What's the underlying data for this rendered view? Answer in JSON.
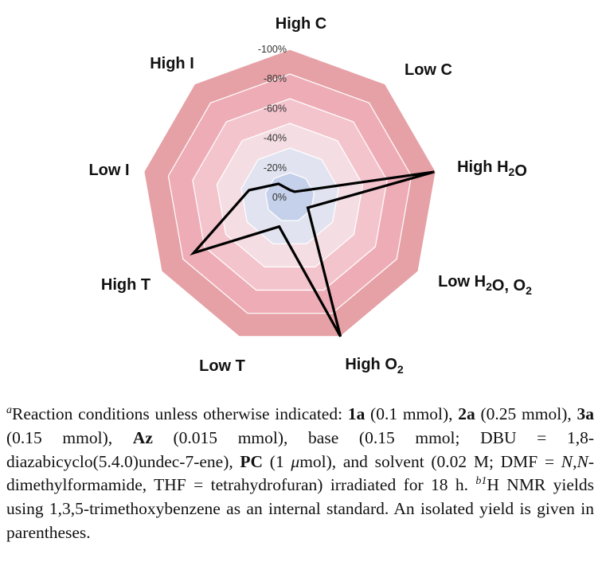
{
  "chart_data": {
    "type": "radar",
    "axes": [
      {
        "label": "High C",
        "sub": ""
      },
      {
        "label": "Low C",
        "sub": ""
      },
      {
        "label": "High H",
        "sub": "2",
        "suffix": "O"
      },
      {
        "label": "Low H",
        "sub": "2",
        "suffix": "O, O",
        "sub2": "2"
      },
      {
        "label": "High O",
        "sub": "2"
      },
      {
        "label": "Low T",
        "sub": ""
      },
      {
        "label": "High T",
        "sub": ""
      },
      {
        "label": "Low I",
        "sub": ""
      },
      {
        "label": "High I",
        "sub": ""
      }
    ],
    "ticks": [
      "0%",
      "-20%",
      "-40%",
      "-60%",
      "-80%",
      "-100%"
    ],
    "rlim": [
      0,
      -100
    ],
    "series": [
      {
        "values": [
          -5,
          -5,
          -99,
          -14,
          -100,
          -21,
          -75,
          -28,
          -12
        ]
      }
    ],
    "ring_colors": [
      "#c5d0ea",
      "#e1e4f0",
      "#f4dde3",
      "#f4c4cd",
      "#eeadb6",
      "#e6a1a6"
    ]
  },
  "footnote": {
    "mark_a": "a",
    "p1": "Reaction conditions unless otherwise indicated: ",
    "b_1a": "1a",
    "p2": " (0.1 mmol), ",
    "b_2a": "2a",
    "p3": " (0.25 mmol), ",
    "b_3a": "3a",
    "p4": " (0.15 mmol), ",
    "b_az": "Az",
    "p5": " (0.015 mmol), base (0.15 mmol; DBU = 1,8-diazabicyclo(5.4.0)undec-7-ene), ",
    "b_pc": "PC",
    "p6": " (1 ",
    "i_mu": "μ",
    "p7": "mol), and solvent (0.02 M; DMF = ",
    "i_nn": "N",
    "p8": ",",
    "i_n2": "N",
    "p9": "-dimethylformamide, THF = tetrahydrofuran) irradiated for 18 h. ",
    "mark_b1": "b1",
    "p10": "H NMR yields using 1,3,5-trimethoxybenzene as an internal standard. An isolated yield is given in parentheses."
  }
}
